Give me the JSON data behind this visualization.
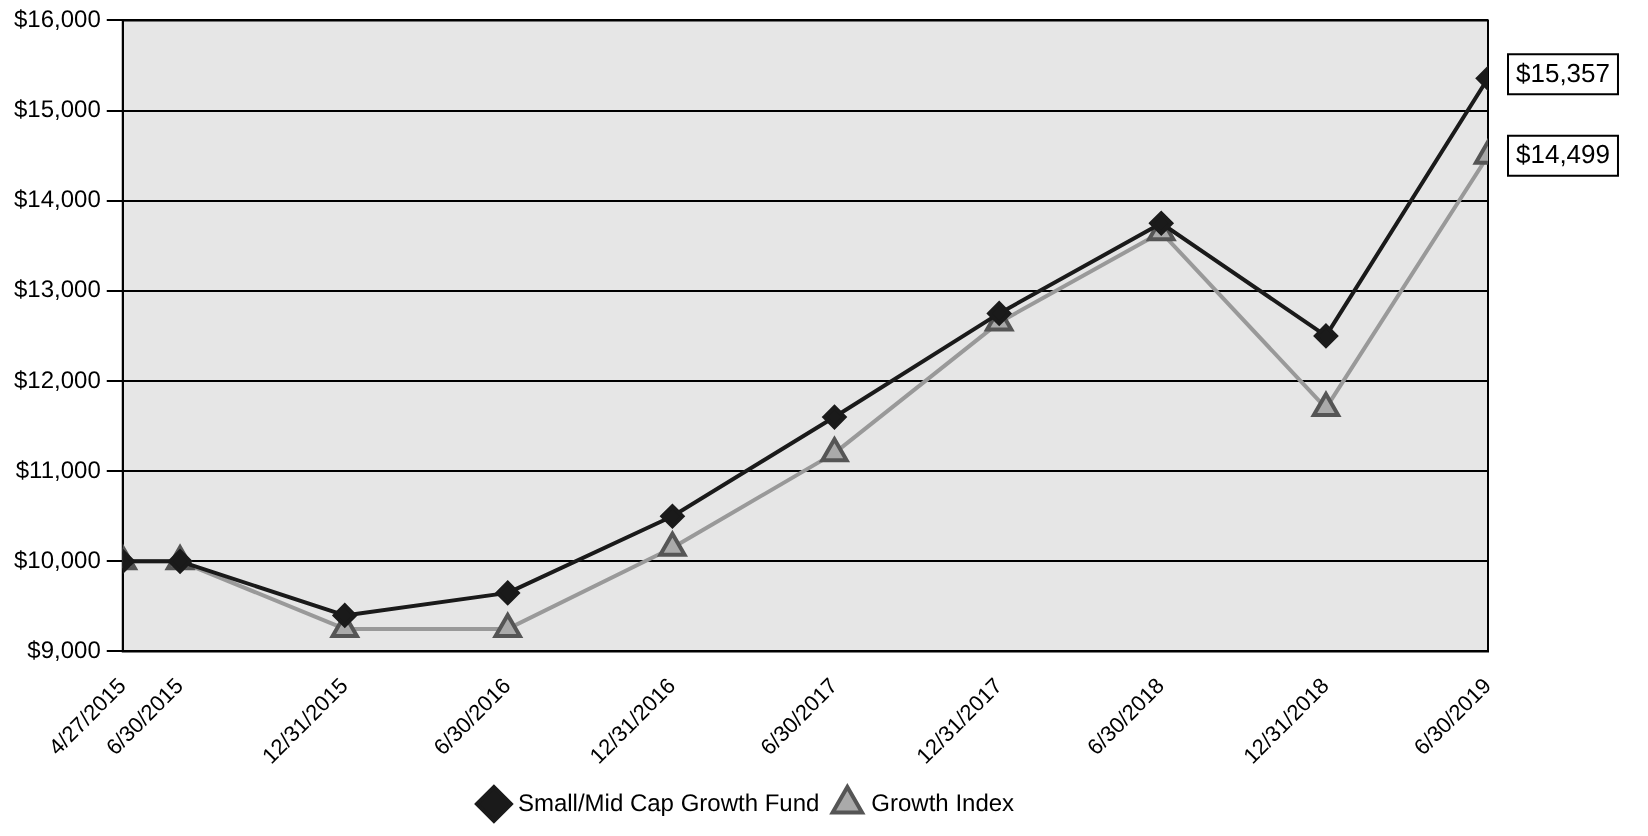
{
  "chart_data": {
    "type": "line",
    "x": [
      "2015-04-27",
      "2015-06-30",
      "2015-12-31",
      "2016-06-30",
      "2016-12-31",
      "2017-06-30",
      "2017-12-31",
      "2018-06-30",
      "2018-12-31",
      "2019-06-30"
    ],
    "series": [
      {
        "name": "Small/Mid Cap Growth Fund",
        "color": "#1a1a1a",
        "marker": "diamond",
        "values": [
          10000,
          10000,
          9400,
          9650,
          10500,
          11600,
          12750,
          13750,
          12500,
          15357
        ],
        "value_labels": [
          null,
          null,
          null,
          null,
          null,
          null,
          null,
          null,
          null,
          "$15,357"
        ]
      },
      {
        "name": "Growth Index",
        "color": "#999999",
        "marker": "triangle",
        "values": [
          10000,
          10000,
          9250,
          9250,
          10150,
          11200,
          12650,
          13650,
          11700,
          14499
        ],
        "value_labels": [
          null,
          null,
          null,
          null,
          null,
          null,
          null,
          null,
          null,
          "$14,499"
        ]
      }
    ],
    "xlim": [
      "2015-04-27",
      "2019-06-30"
    ],
    "xticks": [
      {
        "value": "2015-04-27",
        "label": "4/27/2015"
      },
      {
        "value": "2015-06-30",
        "label": "6/30/2015"
      },
      {
        "value": "2015-12-31",
        "label": "12/31/2015"
      },
      {
        "value": "2016-06-30",
        "label": "6/30/2016"
      },
      {
        "value": "2016-12-31",
        "label": "12/31/2016"
      },
      {
        "value": "2017-06-30",
        "label": "6/30/2017"
      },
      {
        "value": "2017-12-31",
        "label": "12/31/2017"
      },
      {
        "value": "2018-06-30",
        "label": "6/30/2018"
      },
      {
        "value": "2018-12-31",
        "label": "12/31/2018"
      },
      {
        "value": "2019-06-30",
        "label": "6/30/2019"
      }
    ],
    "ylim": [
      9000,
      16000
    ],
    "yticks": [
      {
        "value": 9000,
        "label": "$9,000"
      },
      {
        "value": 10000,
        "label": "$10,000"
      },
      {
        "value": 11000,
        "label": "$11,000"
      },
      {
        "value": 12000,
        "label": "$12,000"
      },
      {
        "value": 13000,
        "label": "$13,000"
      },
      {
        "value": 14000,
        "label": "$14,000"
      },
      {
        "value": 15000,
        "label": "$15,000"
      },
      {
        "value": 16000,
        "label": "$16,000"
      }
    ],
    "grid": "y",
    "legend": "bottom"
  }
}
